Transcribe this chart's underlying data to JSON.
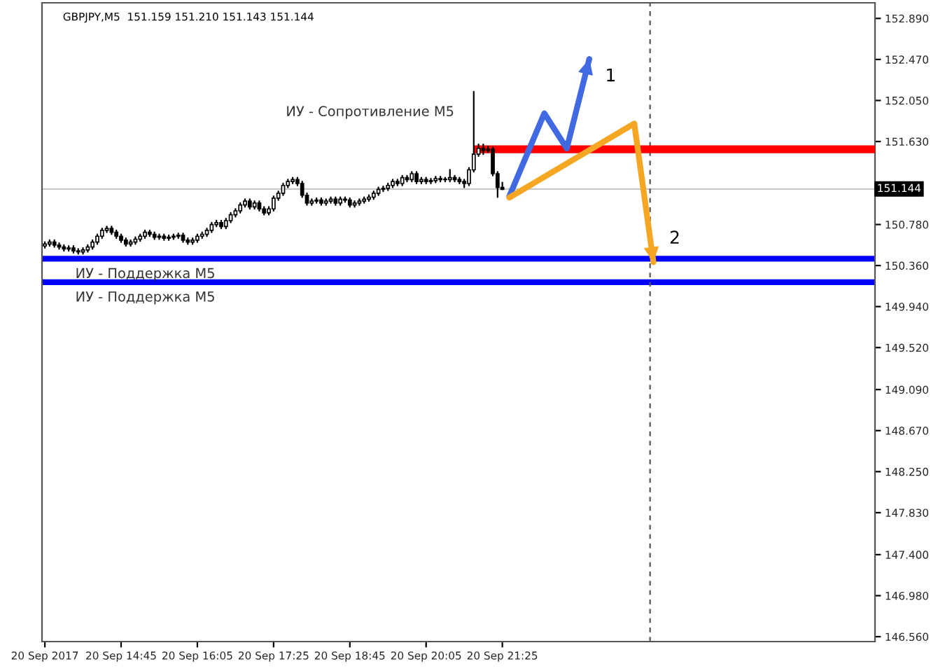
{
  "chart_data": {
    "type": "candlestick",
    "title": "GBPJPY,M5  151.159 151.210 151.143 151.144",
    "x": [
      "2017-09-20T13:25",
      "2017-09-20T13:30",
      "2017-09-20T13:35",
      "2017-09-20T13:40",
      "2017-09-20T13:45",
      "2017-09-20T13:50",
      "2017-09-20T13:55",
      "2017-09-20T14:00",
      "2017-09-20T14:05",
      "2017-09-20T14:10",
      "2017-09-20T14:15",
      "2017-09-20T14:20",
      "2017-09-20T14:25",
      "2017-09-20T14:30",
      "2017-09-20T14:35",
      "2017-09-20T14:40",
      "2017-09-20T14:45",
      "2017-09-20T14:50",
      "2017-09-20T14:55",
      "2017-09-20T15:00",
      "2017-09-20T15:05",
      "2017-09-20T15:10",
      "2017-09-20T15:15",
      "2017-09-20T15:20",
      "2017-09-20T15:25",
      "2017-09-20T15:30",
      "2017-09-20T15:35",
      "2017-09-20T15:40",
      "2017-09-20T15:45",
      "2017-09-20T15:50",
      "2017-09-20T15:55",
      "2017-09-20T16:00",
      "2017-09-20T16:05",
      "2017-09-20T16:10",
      "2017-09-20T16:15",
      "2017-09-20T16:20",
      "2017-09-20T16:25",
      "2017-09-20T16:30",
      "2017-09-20T16:35",
      "2017-09-20T16:40",
      "2017-09-20T16:45",
      "2017-09-20T16:50",
      "2017-09-20T16:55",
      "2017-09-20T17:00",
      "2017-09-20T17:05",
      "2017-09-20T17:10",
      "2017-09-20T17:15",
      "2017-09-20T17:20",
      "2017-09-20T17:25",
      "2017-09-20T17:30",
      "2017-09-20T17:35",
      "2017-09-20T17:40",
      "2017-09-20T17:45",
      "2017-09-20T17:50",
      "2017-09-20T17:55",
      "2017-09-20T18:00",
      "2017-09-20T18:05",
      "2017-09-20T18:10",
      "2017-09-20T18:15",
      "2017-09-20T18:20",
      "2017-09-20T18:25",
      "2017-09-20T18:30",
      "2017-09-20T18:35",
      "2017-09-20T18:40",
      "2017-09-20T18:45",
      "2017-09-20T18:50",
      "2017-09-20T18:55",
      "2017-09-20T19:00",
      "2017-09-20T19:05",
      "2017-09-20T19:10",
      "2017-09-20T19:15",
      "2017-09-20T19:20",
      "2017-09-20T19:25",
      "2017-09-20T19:30",
      "2017-09-20T19:35",
      "2017-09-20T19:40",
      "2017-09-20T19:45",
      "2017-09-20T19:50",
      "2017-09-20T19:55",
      "2017-09-20T20:00",
      "2017-09-20T20:05",
      "2017-09-20T20:10",
      "2017-09-20T20:15",
      "2017-09-20T20:20",
      "2017-09-20T20:25",
      "2017-09-20T20:30",
      "2017-09-20T20:35",
      "2017-09-20T20:40",
      "2017-09-20T20:45",
      "2017-09-20T20:50",
      "2017-09-20T20:55",
      "2017-09-20T21:00",
      "2017-09-20T21:05",
      "2017-09-20T21:10",
      "2017-09-20T21:15",
      "2017-09-20T21:20",
      "2017-09-20T21:25"
    ],
    "ohlc": [
      [
        150.56,
        150.6,
        150.54,
        150.58
      ],
      [
        150.58,
        150.62,
        150.56,
        150.6
      ],
      [
        150.6,
        150.62,
        150.55,
        150.57
      ],
      [
        150.57,
        150.59,
        150.53,
        150.55
      ],
      [
        150.55,
        150.57,
        150.51,
        150.53
      ],
      [
        150.53,
        150.56,
        150.51,
        150.54
      ],
      [
        150.54,
        150.56,
        150.49,
        150.51
      ],
      [
        150.51,
        150.53,
        150.48,
        150.5
      ],
      [
        150.5,
        150.54,
        150.48,
        150.52
      ],
      [
        150.52,
        150.57,
        150.5,
        150.55
      ],
      [
        150.55,
        150.62,
        150.53,
        150.6
      ],
      [
        150.6,
        150.68,
        150.58,
        150.66
      ],
      [
        150.66,
        150.74,
        150.64,
        150.72
      ],
      [
        150.72,
        150.76,
        150.7,
        150.74
      ],
      [
        150.74,
        150.76,
        150.68,
        150.7
      ],
      [
        150.7,
        150.72,
        150.64,
        150.66
      ],
      [
        150.66,
        150.68,
        150.6,
        150.62
      ],
      [
        150.62,
        150.64,
        150.56,
        150.58
      ],
      [
        150.58,
        150.62,
        150.56,
        150.6
      ],
      [
        150.6,
        150.65,
        150.58,
        150.63
      ],
      [
        150.63,
        150.68,
        150.61,
        150.66
      ],
      [
        150.66,
        150.72,
        150.64,
        150.7
      ],
      [
        150.7,
        150.72,
        150.66,
        150.68
      ],
      [
        150.68,
        150.7,
        150.63,
        150.65
      ],
      [
        150.65,
        150.68,
        150.63,
        150.66
      ],
      [
        150.66,
        150.68,
        150.62,
        150.64
      ],
      [
        150.64,
        150.67,
        150.62,
        150.65
      ],
      [
        150.65,
        150.68,
        150.63,
        150.66
      ],
      [
        150.66,
        150.69,
        150.64,
        150.67
      ],
      [
        150.67,
        150.69,
        150.6,
        150.62
      ],
      [
        150.62,
        150.64,
        150.58,
        150.6
      ],
      [
        150.6,
        150.64,
        150.58,
        150.62
      ],
      [
        150.62,
        150.68,
        150.6,
        150.66
      ],
      [
        150.66,
        150.7,
        150.64,
        150.68
      ],
      [
        150.68,
        150.74,
        150.66,
        150.72
      ],
      [
        150.72,
        150.8,
        150.7,
        150.78
      ],
      [
        150.78,
        150.82,
        150.76,
        150.8
      ],
      [
        150.8,
        150.82,
        150.74,
        150.76
      ],
      [
        150.76,
        150.84,
        150.74,
        150.82
      ],
      [
        150.82,
        150.9,
        150.8,
        150.88
      ],
      [
        150.88,
        150.94,
        150.86,
        150.92
      ],
      [
        150.92,
        151.0,
        150.9,
        150.98
      ],
      [
        150.98,
        151.04,
        150.96,
        151.02
      ],
      [
        151.02,
        151.04,
        150.94,
        150.96
      ],
      [
        150.96,
        151.02,
        150.94,
        151.0
      ],
      [
        151.0,
        151.02,
        150.92,
        150.94
      ],
      [
        150.94,
        150.96,
        150.88,
        150.9
      ],
      [
        150.9,
        150.96,
        150.88,
        150.94
      ],
      [
        150.94,
        151.07,
        150.92,
        151.05
      ],
      [
        151.05,
        151.12,
        151.03,
        151.1
      ],
      [
        151.1,
        151.2,
        151.08,
        151.18
      ],
      [
        151.18,
        151.24,
        151.16,
        151.22
      ],
      [
        151.22,
        151.26,
        151.2,
        151.24
      ],
      [
        151.24,
        151.26,
        151.18,
        151.2
      ],
      [
        151.2,
        151.22,
        151.06,
        151.08
      ],
      [
        151.08,
        151.1,
        150.98,
        151.0
      ],
      [
        151.0,
        151.04,
        150.98,
        151.02
      ],
      [
        151.02,
        151.05,
        151.0,
        151.03
      ],
      [
        151.03,
        151.05,
        150.98,
        151.0
      ],
      [
        151.0,
        151.04,
        150.98,
        151.02
      ],
      [
        151.02,
        151.06,
        151.0,
        151.04
      ],
      [
        151.04,
        151.06,
        150.98,
        151.0
      ],
      [
        151.0,
        151.06,
        150.98,
        151.04
      ],
      [
        151.04,
        151.06,
        151.01,
        151.03
      ],
      [
        151.03,
        151.05,
        150.96,
        150.98
      ],
      [
        150.98,
        151.02,
        150.96,
        151.0
      ],
      [
        151.0,
        151.04,
        150.98,
        151.02
      ],
      [
        151.02,
        151.06,
        151.0,
        151.04
      ],
      [
        151.04,
        151.08,
        151.02,
        151.06
      ],
      [
        151.06,
        151.12,
        151.04,
        151.1
      ],
      [
        151.1,
        151.16,
        151.08,
        151.14
      ],
      [
        151.14,
        151.17,
        151.12,
        151.15
      ],
      [
        151.15,
        151.2,
        151.13,
        151.18
      ],
      [
        151.18,
        151.24,
        151.16,
        151.22
      ],
      [
        151.22,
        151.24,
        151.18,
        151.2
      ],
      [
        151.2,
        151.28,
        151.18,
        151.26
      ],
      [
        151.26,
        151.28,
        151.22,
        151.24
      ],
      [
        151.24,
        151.32,
        151.22,
        151.3
      ],
      [
        151.3,
        151.32,
        151.2,
        151.22
      ],
      [
        151.22,
        151.26,
        151.2,
        151.24
      ],
      [
        151.24,
        151.26,
        151.2,
        151.22
      ],
      [
        151.22,
        151.25,
        151.2,
        151.23
      ],
      [
        151.23,
        151.27,
        151.21,
        151.25
      ],
      [
        151.25,
        151.27,
        151.22,
        151.24
      ],
      [
        151.24,
        151.26,
        151.22,
        151.24
      ],
      [
        151.24,
        151.34,
        151.22,
        151.26
      ],
      [
        151.26,
        151.28,
        151.22,
        151.24
      ],
      [
        151.24,
        151.26,
        151.2,
        151.22
      ],
      [
        151.22,
        151.24,
        151.16,
        151.2
      ],
      [
        151.2,
        151.36,
        151.18,
        151.34
      ],
      [
        151.34,
        152.14,
        151.32,
        151.5
      ],
      [
        151.5,
        151.6,
        151.48,
        151.56
      ],
      [
        151.56,
        151.6,
        151.5,
        151.54
      ],
      [
        151.54,
        151.58,
        151.52,
        151.55
      ],
      [
        151.55,
        151.57,
        151.28,
        151.3
      ],
      [
        151.3,
        151.32,
        151.06,
        151.16
      ],
      [
        151.16,
        151.21,
        151.14,
        151.14
      ]
    ],
    "series": [
      {
        "type": "line",
        "name": "ИУ - Сопротивление М5",
        "color": "#ff0000",
        "x": [
          "2017-09-20T20:55",
          "2017-09-21T03:56"
        ],
        "values": [
          151.55,
          151.55
        ]
      }
    ],
    "ref_lines": [
      {
        "axis": "y",
        "value": 150.43,
        "label": "ИУ - Поддержка М5",
        "color": "#0000ff"
      },
      {
        "axis": "y",
        "value": 150.19,
        "label": "ИУ - Поддержка М5",
        "color": "#0000ff"
      },
      {
        "axis": "y",
        "value": 151.144,
        "label": "151.144",
        "color": "#c8c8c8"
      },
      {
        "axis": "x",
        "value": "2017-09-21T00:00",
        "color": "#555555",
        "line_style": "dashed"
      }
    ],
    "annotations": [
      "1",
      "2"
    ],
    "xlim": [
      "2017-09-20T13:22",
      "2017-09-21T03:56"
    ],
    "xticks": [
      {
        "value": "2017-09-20T13:25",
        "label": "20 Sep 2017"
      },
      {
        "value": "2017-09-20T14:45",
        "label": "20 Sep 14:45"
      },
      {
        "value": "2017-09-20T16:05",
        "label": "20 Sep 16:05"
      },
      {
        "value": "2017-09-20T17:25",
        "label": "20 Sep 17:25"
      },
      {
        "value": "2017-09-20T18:45",
        "label": "20 Sep 18:45"
      },
      {
        "value": "2017-09-20T20:05",
        "label": "20 Sep 20:05"
      },
      {
        "value": "2017-09-20T21:25",
        "label": "20 Sep 21:25"
      }
    ],
    "ylim": [
      146.51,
      153.05
    ],
    "yticks": [
      {
        "value": 152.89,
        "label": "152.890"
      },
      {
        "value": 152.47,
        "label": "152.470"
      },
      {
        "value": 152.05,
        "label": "152.050"
      },
      {
        "value": 151.63,
        "label": "151.630"
      },
      {
        "value": 151.21,
        "label": null
      },
      {
        "value": 150.78,
        "label": "150.780"
      },
      {
        "value": 150.36,
        "label": "150.360"
      },
      {
        "value": 149.94,
        "label": "149.940"
      },
      {
        "value": 149.52,
        "label": "149.520"
      },
      {
        "value": 149.09,
        "label": "149.090"
      },
      {
        "value": 148.67,
        "label": "148.670"
      },
      {
        "value": 148.25,
        "label": "148.250"
      },
      {
        "value": 147.83,
        "label": "147.830"
      },
      {
        "value": 147.4,
        "label": "147.400"
      },
      {
        "value": 146.98,
        "label": "146.980"
      },
      {
        "value": 146.56,
        "label": "146.560"
      }
    ],
    "grid": false,
    "legend": false
  }
}
